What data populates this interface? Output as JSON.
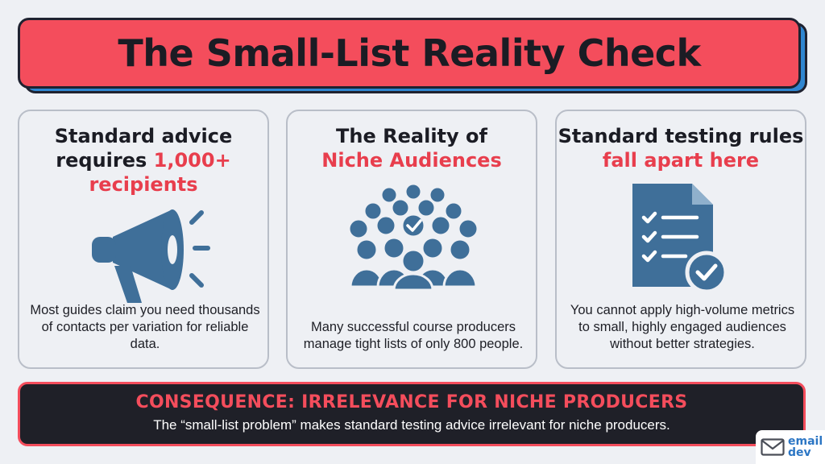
{
  "title": "The Small-List Reality Check",
  "colors": {
    "accent_red": "#f44d5c",
    "icon_blue": "#3f6f99",
    "dark": "#1f2028",
    "shadow_blue": "#2f86d0"
  },
  "cards": [
    {
      "title_plain": "Standard advice requires ",
      "title_highlight": "1,000+ recipients",
      "icon": "megaphone-icon",
      "body": "Most guides claim you need thousands of contacts per variation for reliable data."
    },
    {
      "title_plain": "The Reality of",
      "title_highlight": "Niche Audiences",
      "icon": "crowd-icon",
      "body": "Many successful course producers manage tight lists of only 800 people."
    },
    {
      "title_plain": "Standard testing rules ",
      "title_highlight": "fall apart here",
      "icon": "checklist-document-icon",
      "body": "You cannot apply high-volume metrics to small, highly engaged audiences without better strategies."
    }
  ],
  "consequence": {
    "title": "CONSEQUENCE: IRRELEVANCE FOR NICHE PRODUCERS",
    "text": "The “small-list problem” makes standard testing advice irrelevant for niche producers."
  },
  "logo": {
    "line1": "email",
    "line2": "dev",
    "icon": "envelope-icon"
  }
}
